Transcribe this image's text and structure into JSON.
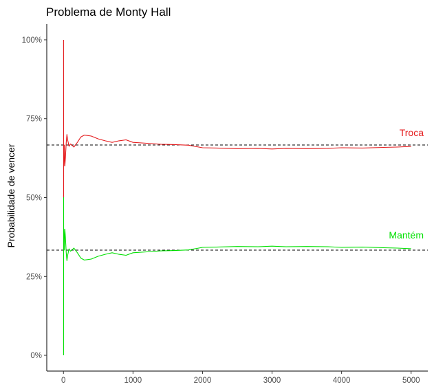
{
  "chart_data": {
    "type": "line",
    "title": "Problema de Monty Hall",
    "xlabel": "",
    "ylabel": "Probabilidade de vencer",
    "xlim": [
      -240,
      5240
    ],
    "ylim": [
      -0.05,
      1.05
    ],
    "x_ticks": [
      0,
      1000,
      2000,
      3000,
      4000,
      5000
    ],
    "x_tick_labels": [
      "0",
      "1000",
      "2000",
      "3000",
      "4000",
      "5000"
    ],
    "y_ticks": [
      0,
      0.25,
      0.5,
      0.75,
      1.0
    ],
    "y_tick_labels": [
      "0%",
      "25%",
      "50%",
      "75%",
      "100%"
    ],
    "grid": false,
    "reference_lines": [
      0.6667,
      0.3333
    ],
    "series": [
      {
        "name": "Troca",
        "color": "#e41a1c",
        "x": [
          1,
          2,
          3,
          5,
          8,
          12,
          20,
          30,
          40,
          50,
          60,
          80,
          100,
          120,
          150,
          200,
          250,
          300,
          400,
          500,
          600,
          700,
          800,
          900,
          1000,
          1200,
          1400,
          1600,
          1800,
          2000,
          2200,
          2500,
          2800,
          3000,
          3200,
          3500,
          3800,
          4000,
          4300,
          4600,
          4800,
          5000
        ],
        "y": [
          1.0,
          0.5,
          0.6667,
          0.6,
          0.625,
          0.6667,
          0.6,
          0.6333,
          0.675,
          0.7,
          0.6833,
          0.6625,
          0.67,
          0.6667,
          0.66,
          0.675,
          0.692,
          0.698,
          0.695,
          0.686,
          0.68,
          0.675,
          0.68,
          0.683,
          0.675,
          0.672,
          0.669,
          0.668,
          0.666,
          0.658,
          0.657,
          0.655,
          0.656,
          0.654,
          0.656,
          0.655,
          0.656,
          0.658,
          0.657,
          0.659,
          0.66,
          0.662
        ]
      },
      {
        "name": "Mantém",
        "color": "#00e000",
        "x": [
          1,
          2,
          3,
          5,
          8,
          12,
          20,
          30,
          40,
          50,
          60,
          80,
          100,
          120,
          150,
          200,
          250,
          300,
          400,
          500,
          600,
          700,
          800,
          900,
          1000,
          1200,
          1400,
          1600,
          1800,
          2000,
          2200,
          2500,
          2800,
          3000,
          3200,
          3500,
          3800,
          4000,
          4300,
          4600,
          4800,
          5000
        ],
        "y": [
          0.0,
          0.5,
          0.3333,
          0.4,
          0.375,
          0.3333,
          0.4,
          0.3667,
          0.325,
          0.3,
          0.3167,
          0.3375,
          0.33,
          0.3333,
          0.34,
          0.325,
          0.308,
          0.302,
          0.305,
          0.314,
          0.32,
          0.325,
          0.32,
          0.317,
          0.325,
          0.328,
          0.331,
          0.332,
          0.334,
          0.342,
          0.343,
          0.345,
          0.344,
          0.346,
          0.344,
          0.345,
          0.344,
          0.342,
          0.343,
          0.341,
          0.34,
          0.338
        ]
      }
    ]
  }
}
